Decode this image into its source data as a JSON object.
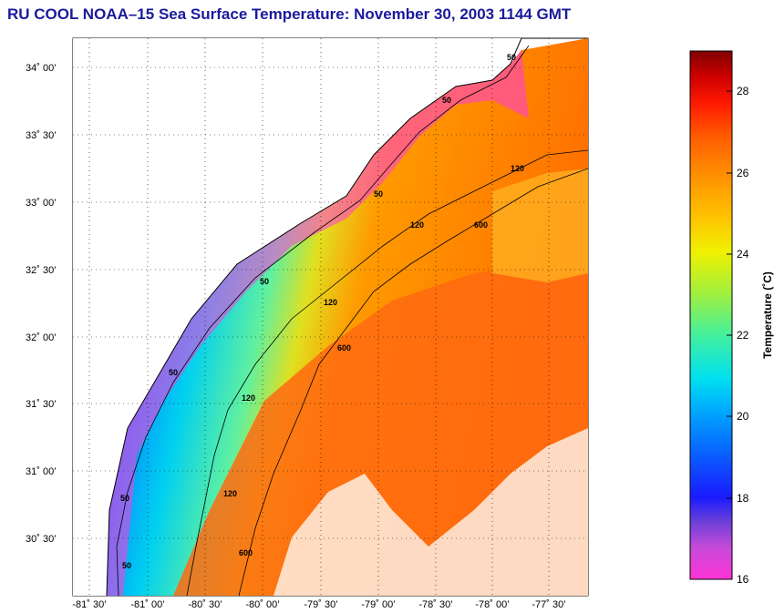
{
  "title": "RU COOL  NOAA–15  Sea Surface Temperature:  November 30, 2003 1144 GMT",
  "map": {
    "lat_labels": [
      "34˚ 00’",
      "33˚ 30’",
      "33˚ 00’",
      "32˚ 30’",
      "32˚ 00’",
      "31˚ 30’",
      "31˚ 00’",
      "30˚ 30’"
    ],
    "lon_labels": [
      "-81˚ 30’",
      "-81˚ 00’",
      "-80˚ 30’",
      "-80˚ 00’",
      "-79˚ 30’",
      "-79˚ 00’",
      "-78˚ 30’",
      "-78˚ 00’",
      "-77˚ 30’"
    ],
    "isobath_labels": [
      "50",
      "50",
      "50",
      "50",
      "50",
      "50",
      "50",
      "120",
      "120",
      "120",
      "120",
      "120",
      "600",
      "600",
      "600"
    ]
  },
  "colorbar": {
    "title": "Temperature (˚C)",
    "tick_labels": [
      "28",
      "26",
      "24",
      "22",
      "20",
      "18",
      "16"
    ],
    "range": [
      16,
      29
    ],
    "colors": [
      "#ff33d6",
      "#c64ad8",
      "#6a3fd8",
      "#1a1aff",
      "#0a5aff",
      "#00a0ff",
      "#00e0f0",
      "#40f0a0",
      "#a0f040",
      "#f0f000",
      "#ffc000",
      "#ff8c00",
      "#ff5a00",
      "#ff1a00",
      "#d00000",
      "#800000"
    ]
  }
}
